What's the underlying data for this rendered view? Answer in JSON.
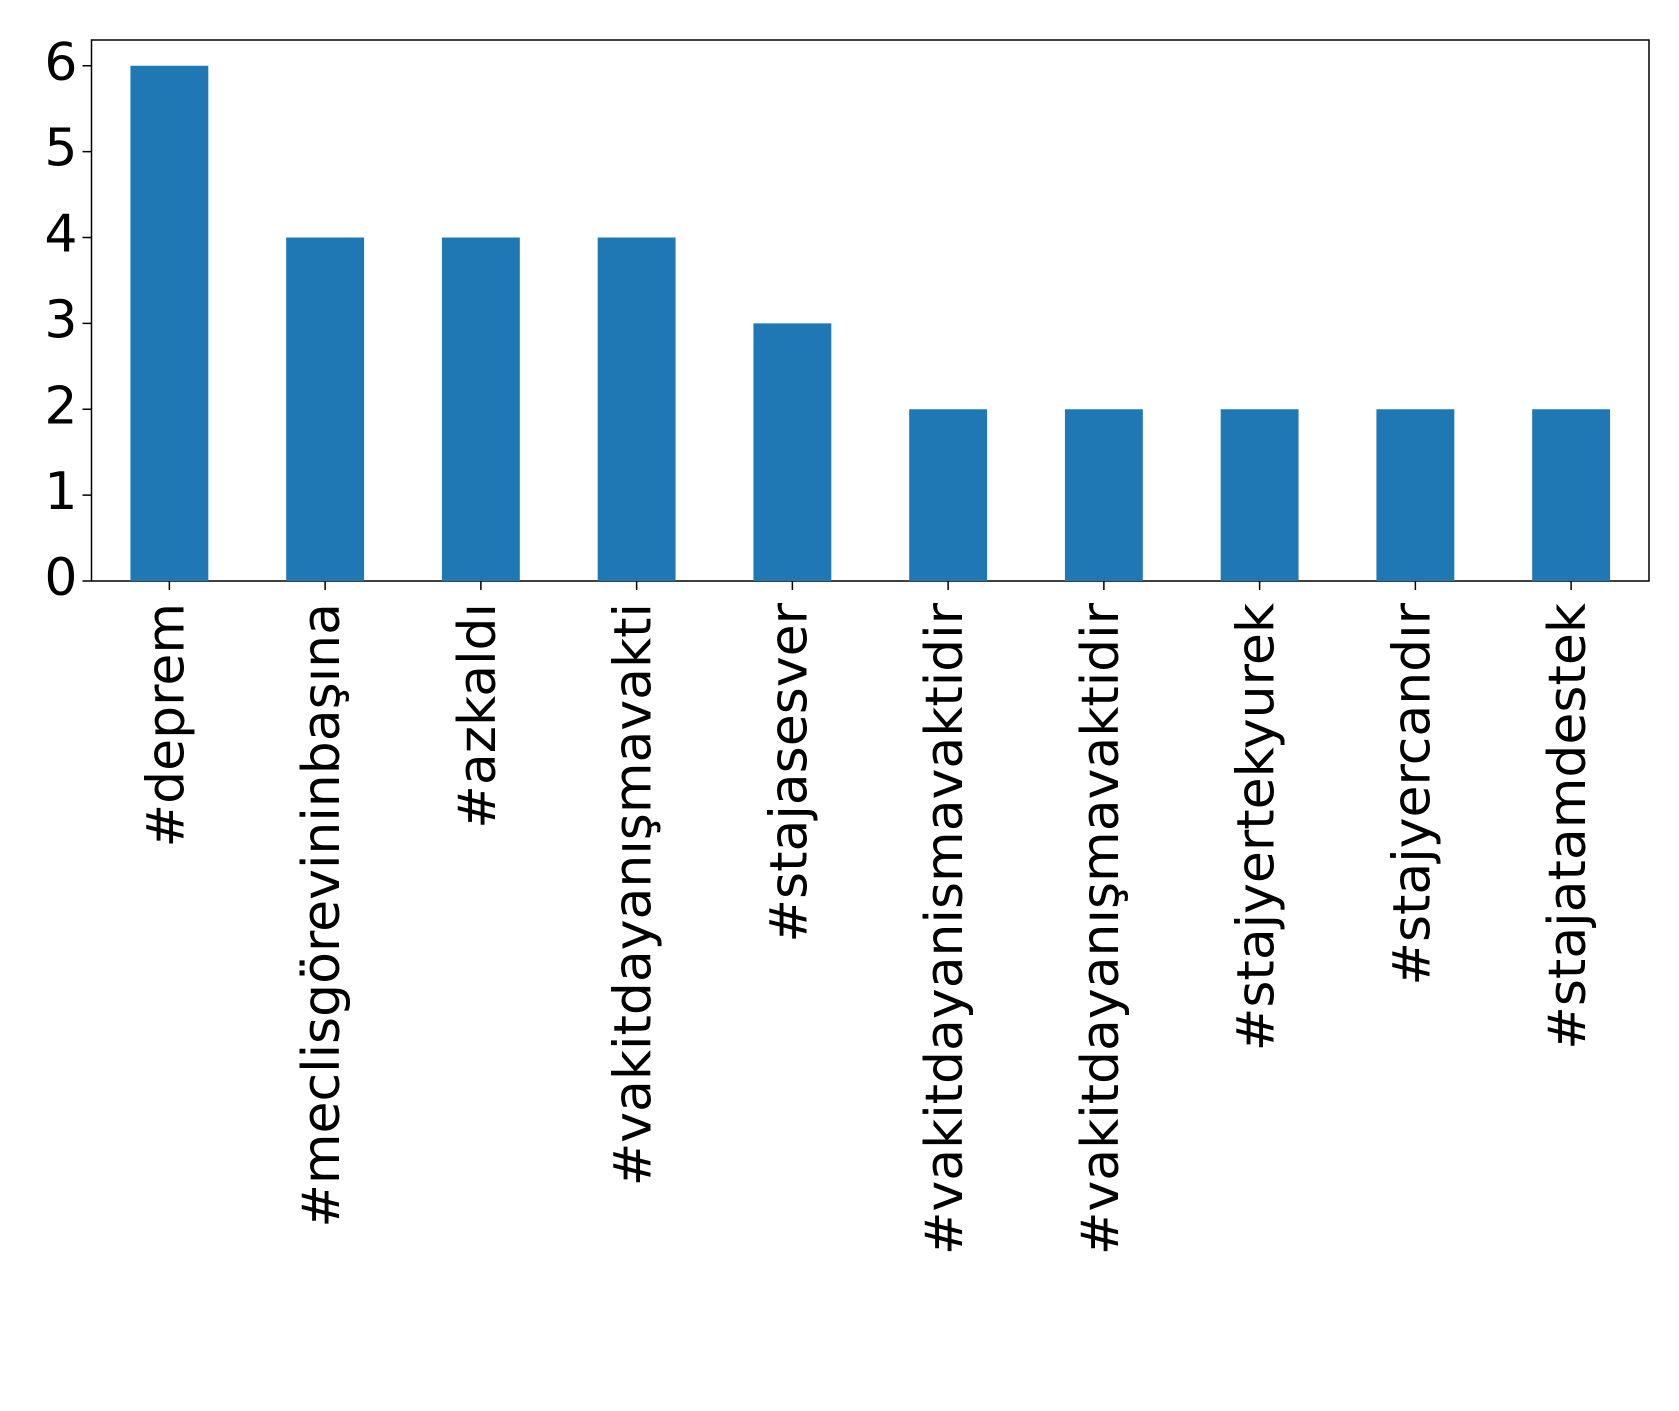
{
  "chart_data": {
    "type": "bar",
    "categories": [
      "#deprem",
      "#meclisgörevininbaşına",
      "#azkaldı",
      "#vakitdayanışmavakti",
      "#stajasesver",
      "#vakitdayanismavaktidir",
      "#vakitdayanışmavaktidir",
      "#stajyertekyurek",
      "#stajyercandır",
      "#stajatamdestek"
    ],
    "values": [
      6,
      4,
      4,
      4,
      3,
      2,
      2,
      2,
      2,
      2
    ],
    "color": "#1f77b4",
    "ylim": [
      0,
      6.3
    ],
    "yticks": [
      0,
      1,
      2,
      3,
      4,
      5,
      6
    ],
    "grid": false
  }
}
